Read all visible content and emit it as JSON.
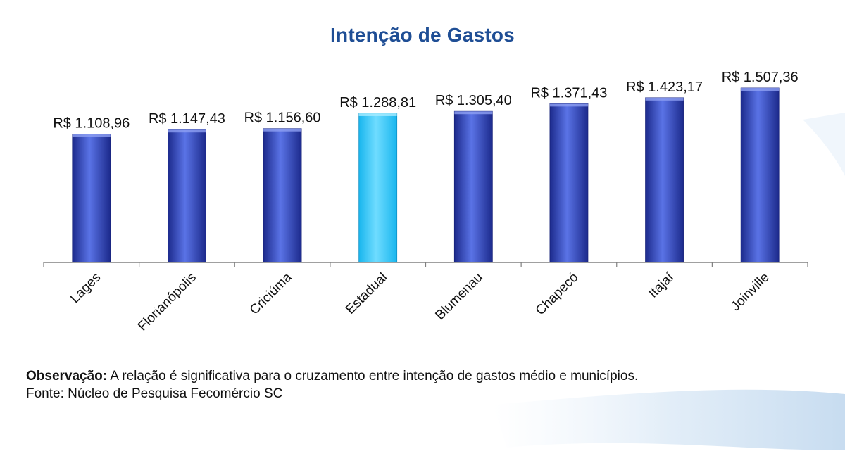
{
  "chart_data": {
    "type": "bar",
    "title": "Intenção de Gastos",
    "categories": [
      "Lages",
      "Florianópolis",
      "Criciúma",
      "Estadual",
      "Blumenau",
      "Chapecó",
      "Itajaí",
      "Joinville"
    ],
    "values": [
      1108.96,
      1147.43,
      1156.6,
      1288.81,
      1305.4,
      1371.43,
      1423.17,
      1507.36
    ],
    "data_labels": [
      "R$ 1.108,96",
      "R$ 1.147,43",
      "R$ 1.156,60",
      "R$ 1.288,81",
      "R$ 1.305,40",
      "R$ 1.371,43",
      "R$ 1.423,17",
      "R$ 1.507,36"
    ],
    "highlight_category": "Estadual",
    "colors": {
      "bar": "#2f45c4",
      "bar_dark": "#1c2a8c",
      "bar_light": "#5a73e6",
      "highlight": "#19b6ee",
      "highlight_light": "#6fdcff",
      "title": "#1f4e95",
      "axis": "#808080"
    },
    "xlabel": "",
    "ylabel": "",
    "grid": false,
    "legend": "none"
  },
  "note": {
    "observation_label": "Observação:",
    "observation_text": " A relação é significativa para o cruzamento entre intenção de gastos médio e municípios.",
    "source": "Fonte: Núcleo de Pesquisa Fecomércio SC"
  }
}
